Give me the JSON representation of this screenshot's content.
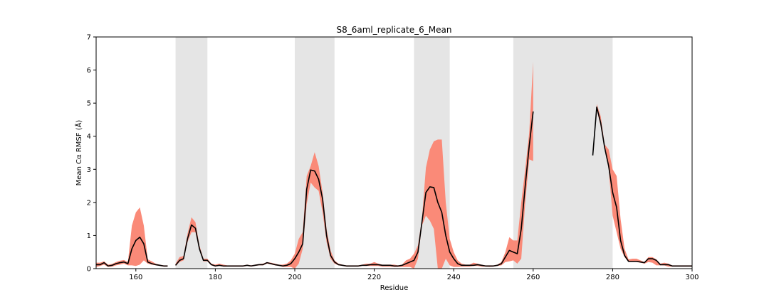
{
  "chart_data": {
    "type": "line",
    "title": "S8_6aml_replicate_6_Mean",
    "xlabel": "Residue",
    "ylabel": "Mean Cα RMSF (Å)",
    "xlim": [
      150,
      300
    ],
    "ylim": [
      0,
      7
    ],
    "x_ticks": [
      160,
      180,
      200,
      220,
      240,
      260,
      280,
      300
    ],
    "y_ticks": [
      0,
      1,
      2,
      3,
      4,
      5,
      6,
      7
    ],
    "grid": false,
    "colors": {
      "mean_line": "#000000",
      "band_fill": "#fa8a78",
      "shaded_region": "#e5e5e5"
    },
    "shaded_regions": [
      [
        170,
        178
      ],
      [
        200,
        210
      ],
      [
        230,
        239
      ],
      [
        255,
        280
      ]
    ],
    "series": [
      {
        "type": "line",
        "segments": [
          {
            "x": [
              150,
              151,
              152,
              153,
              154,
              155,
              156,
              157,
              158,
              159,
              160,
              161,
              162,
              163,
              164,
              165,
              166,
              167,
              168
            ],
            "y": [
              0.12,
              0.12,
              0.18,
              0.08,
              0.1,
              0.15,
              0.18,
              0.2,
              0.15,
              0.6,
              0.85,
              0.95,
              0.75,
              0.2,
              0.15,
              0.12,
              0.1,
              0.08,
              0.08
            ]
          },
          {
            "x": [
              170,
              171,
              172,
              173,
              174,
              175,
              176,
              177,
              178,
              179,
              180,
              181,
              182,
              183,
              184,
              185,
              186,
              187,
              188,
              189,
              190,
              191,
              192,
              193,
              194,
              195,
              196,
              197,
              198,
              199,
              200,
              201,
              202,
              203,
              204,
              205,
              206,
              207,
              208,
              209,
              210,
              211,
              212,
              213,
              214,
              215,
              216,
              217,
              218,
              219,
              220,
              221,
              222,
              223,
              224,
              225,
              226,
              227,
              228,
              229,
              230,
              231,
              232,
              233,
              234,
              235,
              236,
              237,
              238,
              239,
              240,
              241,
              242,
              243,
              244,
              245,
              246,
              247,
              248,
              249,
              250,
              251,
              252,
              253,
              254,
              255,
              256,
              257,
              258,
              259,
              260
            ],
            "y": [
              0.1,
              0.25,
              0.3,
              0.9,
              1.32,
              1.22,
              0.6,
              0.25,
              0.25,
              0.12,
              0.08,
              0.1,
              0.08,
              0.08,
              0.08,
              0.08,
              0.08,
              0.08,
              0.1,
              0.08,
              0.1,
              0.12,
              0.12,
              0.18,
              0.15,
              0.12,
              0.1,
              0.08,
              0.1,
              0.15,
              0.3,
              0.5,
              0.75,
              2.4,
              2.98,
              2.95,
              2.7,
              2.1,
              1.0,
              0.4,
              0.2,
              0.12,
              0.1,
              0.08,
              0.08,
              0.08,
              0.08,
              0.1,
              0.1,
              0.12,
              0.12,
              0.12,
              0.1,
              0.1,
              0.1,
              0.08,
              0.08,
              0.1,
              0.15,
              0.2,
              0.25,
              0.5,
              1.4,
              2.3,
              2.47,
              2.45,
              2.0,
              1.7,
              1.0,
              0.5,
              0.3,
              0.15,
              0.1,
              0.1,
              0.1,
              0.1,
              0.12,
              0.1,
              0.08,
              0.08,
              0.08,
              0.1,
              0.15,
              0.35,
              0.55,
              0.5,
              0.45,
              1.2,
              2.5,
              3.7,
              4.75
            ]
          },
          {
            "x": [
              275,
              276,
              277,
              278,
              279,
              280,
              281,
              282,
              283,
              284,
              285,
              286,
              287,
              288,
              289,
              290,
              291,
              292,
              293,
              294,
              295,
              296,
              297,
              298,
              299,
              300
            ],
            "y": [
              3.42,
              4.88,
              4.4,
              3.65,
              3.1,
              2.3,
              1.85,
              0.85,
              0.4,
              0.22,
              0.22,
              0.22,
              0.2,
              0.18,
              0.3,
              0.3,
              0.25,
              0.12,
              0.12,
              0.12,
              0.08,
              0.08,
              0.08,
              0.08,
              0.08,
              0.08
            ]
          }
        ]
      }
    ],
    "band": {
      "segments": [
        {
          "x": [
            150,
            151,
            152,
            153,
            154,
            155,
            156,
            157,
            158,
            159,
            160,
            161,
            162,
            163,
            164,
            165,
            166,
            167,
            168
          ],
          "lower": [
            0.05,
            0.08,
            0.12,
            0.05,
            0.06,
            0.1,
            0.12,
            0.15,
            0.1,
            0.1,
            0.08,
            0.12,
            0.25,
            0.15,
            0.12,
            0.1,
            0.08,
            0.06,
            0.06
          ],
          "upper": [
            0.18,
            0.18,
            0.22,
            0.12,
            0.14,
            0.2,
            0.24,
            0.26,
            0.2,
            1.3,
            1.7,
            1.85,
            1.3,
            0.28,
            0.22,
            0.15,
            0.12,
            0.1,
            0.1
          ]
        },
        {
          "x": [
            170,
            171,
            172,
            173,
            174,
            175,
            176,
            177,
            178,
            179,
            180,
            181,
            182,
            183,
            184,
            185,
            186,
            187,
            188,
            189,
            190,
            191,
            192,
            193,
            194,
            195,
            196,
            197,
            198,
            199,
            200,
            201,
            202,
            203,
            204,
            205,
            206,
            207,
            208,
            209,
            210,
            211,
            212,
            213,
            214,
            215,
            216,
            217,
            218,
            219,
            220,
            221,
            222,
            223,
            224,
            225,
            226,
            227,
            228,
            229,
            230,
            231,
            232,
            233,
            234,
            235,
            236,
            237,
            238,
            239,
            240,
            241,
            242,
            243,
            244,
            245,
            246,
            247,
            248,
            249,
            250,
            251,
            252,
            253,
            254,
            255,
            256,
            257,
            258,
            259,
            260
          ],
          "lower": [
            0.08,
            0.2,
            0.25,
            0.8,
            1.1,
            1.1,
            0.55,
            0.22,
            0.22,
            0.1,
            0.06,
            0.08,
            0.06,
            0.06,
            0.06,
            0.06,
            0.06,
            0.06,
            0.08,
            0.06,
            0.08,
            0.1,
            0.1,
            0.15,
            0.13,
            0.1,
            0.08,
            0.05,
            0.05,
            0.05,
            0.0,
            0.15,
            0.6,
            1.95,
            2.6,
            2.45,
            2.35,
            1.7,
            0.8,
            0.3,
            0.15,
            0.1,
            0.08,
            0.06,
            0.06,
            0.06,
            0.06,
            0.08,
            0.08,
            0.08,
            0.08,
            0.08,
            0.06,
            0.06,
            0.06,
            0.05,
            0.05,
            0.05,
            0.05,
            0.05,
            0.0,
            0.3,
            1.3,
            1.6,
            1.45,
            1.2,
            0.0,
            0.0,
            0.3,
            0.1,
            0.05,
            0.05,
            0.06,
            0.06,
            0.06,
            0.08,
            0.08,
            0.06,
            0.06,
            0.05,
            0.06,
            0.08,
            0.1,
            0.2,
            0.22,
            0.25,
            0.15,
            0.3,
            2.0,
            3.3,
            3.25
          ],
          "upper": [
            0.15,
            0.35,
            0.38,
            1.05,
            1.55,
            1.4,
            0.7,
            0.3,
            0.3,
            0.15,
            0.12,
            0.15,
            0.12,
            0.1,
            0.1,
            0.1,
            0.1,
            0.1,
            0.12,
            0.1,
            0.12,
            0.14,
            0.15,
            0.2,
            0.18,
            0.15,
            0.12,
            0.12,
            0.15,
            0.25,
            0.45,
            0.9,
            1.1,
            2.8,
            3.1,
            3.52,
            3.1,
            2.3,
            1.2,
            0.55,
            0.25,
            0.15,
            0.12,
            0.1,
            0.1,
            0.1,
            0.1,
            0.12,
            0.15,
            0.15,
            0.2,
            0.15,
            0.12,
            0.12,
            0.12,
            0.12,
            0.1,
            0.12,
            0.25,
            0.3,
            0.45,
            0.7,
            1.5,
            3.05,
            3.6,
            3.85,
            3.9,
            3.9,
            2.0,
            0.9,
            0.5,
            0.25,
            0.15,
            0.12,
            0.12,
            0.18,
            0.15,
            0.12,
            0.1,
            0.1,
            0.1,
            0.12,
            0.2,
            0.5,
            0.95,
            0.85,
            0.85,
            2.0,
            3.0,
            4.1,
            6.25
          ]
        },
        {
          "x": [
            276,
            277,
            278,
            279,
            280,
            281,
            282,
            283,
            284,
            285,
            286,
            287,
            288,
            289,
            290,
            291,
            292,
            293,
            294,
            295,
            296,
            297,
            298,
            299,
            300
          ],
          "lower": [
            4.8,
            4.3,
            3.6,
            3.0,
            1.6,
            1.1,
            0.6,
            0.35,
            0.2,
            0.2,
            0.2,
            0.18,
            0.15,
            0.2,
            0.18,
            0.1,
            0.1,
            0.1,
            0.06,
            0.06,
            0.06,
            0.06,
            0.06,
            0.06,
            0.06
          ],
          "upper": [
            4.98,
            4.6,
            3.75,
            3.6,
            3.0,
            2.8,
            1.5,
            0.6,
            0.28,
            0.3,
            0.3,
            0.25,
            0.2,
            0.35,
            0.35,
            0.28,
            0.15,
            0.18,
            0.15,
            0.1,
            0.1,
            0.1,
            0.1,
            0.1,
            0.1
          ]
        }
      ]
    }
  }
}
